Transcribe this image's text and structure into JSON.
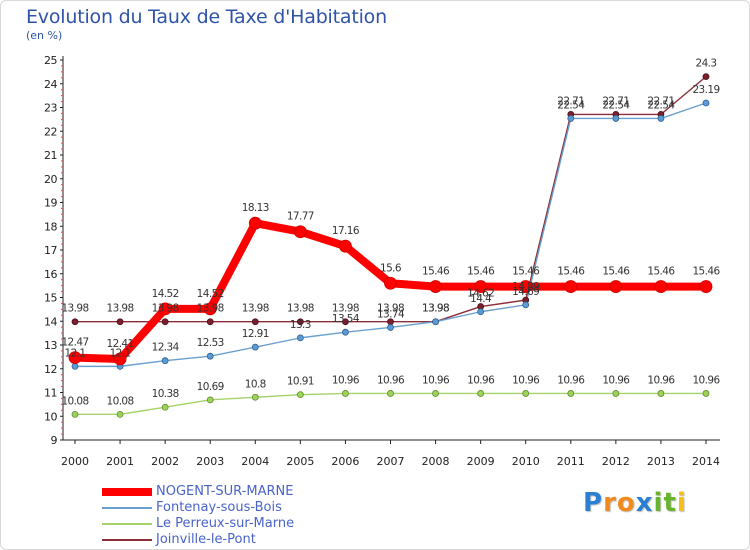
{
  "page": {
    "title": "Evolution du Taux de Taxe d'Habitation",
    "subtitle": "(en %)"
  },
  "brand": {
    "letters": [
      "P",
      "r",
      "o",
      "x",
      "i",
      "t",
      "i"
    ],
    "colors": [
      "#2a7fd3",
      "#f08a1d",
      "#f08a1d",
      "#2a7fd3",
      "#6ab42d",
      "#6ab42d",
      "#f0c01d"
    ]
  },
  "chart_data": {
    "type": "line",
    "title": "Evolution du Taux de Taxe d'Habitation",
    "ylabel": "(en %)",
    "xlabel": "",
    "x": [
      2000,
      2001,
      2002,
      2003,
      2004,
      2005,
      2006,
      2007,
      2008,
      2009,
      2010,
      2011,
      2012,
      2013,
      2014
    ],
    "ylim": [
      9,
      25
    ],
    "yticks": [
      9,
      10,
      11,
      12,
      13,
      14,
      15,
      16,
      17,
      18,
      19,
      20,
      21,
      22,
      23,
      24,
      25
    ],
    "grid": false,
    "legend_position": "bottom-left",
    "series": [
      {
        "name": "NOGENT-SUR-MARNE",
        "color": "#ff0000",
        "values": [
          12.47,
          12.41,
          14.52,
          14.52,
          18.13,
          17.77,
          17.16,
          15.6,
          15.46,
          15.46,
          15.46,
          15.46,
          15.46,
          15.46,
          15.46
        ],
        "labels": [
          "12.47",
          "12.41",
          "14.52",
          "14.52",
          "18.13",
          "17.77",
          "17.16",
          "15.6",
          "15.46",
          "15.46",
          "15.46",
          "15.46",
          "15.46",
          "15.46",
          "15.46"
        ]
      },
      {
        "name": "Fontenay-sous-Bois",
        "color": "#6aa0d0",
        "values": [
          12.1,
          12.1,
          12.34,
          12.53,
          12.91,
          13.3,
          13.54,
          13.74,
          13.98,
          14.4,
          14.69,
          22.54,
          22.54,
          22.54,
          23.19
        ],
        "labels": [
          "12.1",
          "12.1",
          "12.34",
          "12.53",
          "12.91",
          "13.3",
          "13.54",
          "13.74",
          "13.98",
          "14.4",
          "14.69",
          "22.54",
          "22.54",
          "22.54",
          "23.19"
        ]
      },
      {
        "name": "Le Perreux-sur-Marne",
        "color": "#a5d36a",
        "values": [
          10.08,
          10.08,
          10.38,
          10.69,
          10.8,
          10.91,
          10.96,
          10.96,
          10.96,
          10.96,
          10.96,
          10.96,
          10.96,
          10.96,
          10.96
        ],
        "labels": [
          "10.08",
          "10.08",
          "10.38",
          "10.69",
          "10.8",
          "10.91",
          "10.96",
          "10.96",
          "10.96",
          "10.96",
          "10.96",
          "10.96",
          "10.96",
          "10.96",
          "10.96"
        ]
      },
      {
        "name": "Joinville-le-Pont",
        "color": "#8b2e3a",
        "values": [
          13.98,
          13.98,
          13.98,
          13.98,
          13.98,
          13.98,
          13.98,
          13.98,
          13.98,
          14.62,
          14.89,
          22.71,
          22.71,
          22.71,
          24.3
        ],
        "labels": [
          "13.98",
          "13.98",
          "13.98",
          "13.98",
          "13.98",
          "13.98",
          "13.98",
          "13.98",
          "13.98",
          "14.62",
          "14.89",
          "22.71",
          "22.71",
          "22.71",
          "24.3"
        ]
      }
    ]
  }
}
